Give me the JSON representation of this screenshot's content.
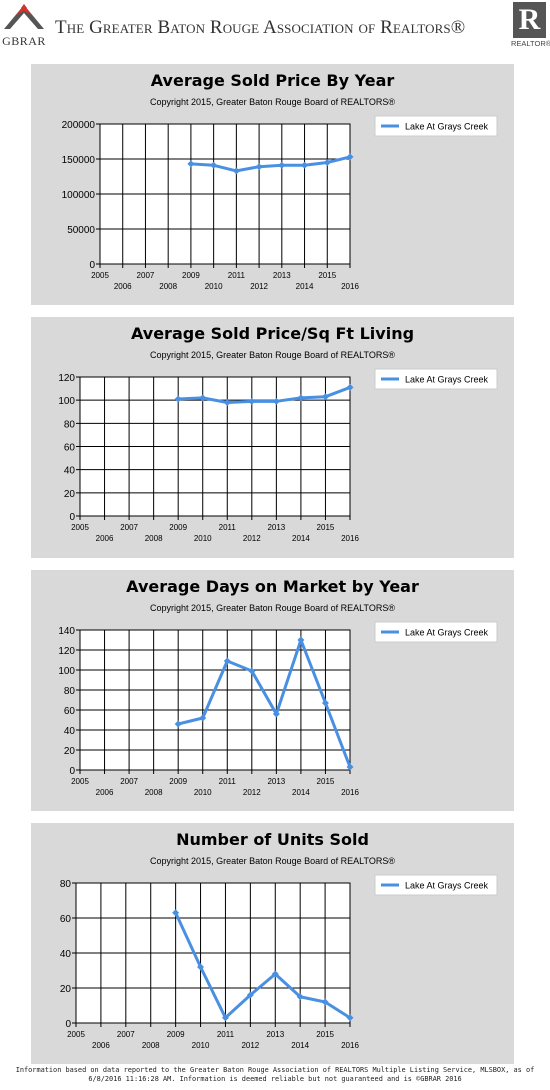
{
  "header": {
    "title": "The Greater Baton Rouge Association of Realtors®",
    "gbrar_logo_text": "GBRAR",
    "realtor_logo_letter": "R",
    "realtor_logo_text": "REALTOR®"
  },
  "chart_data": [
    {
      "type": "line",
      "title": "Average Sold Price By Year",
      "subtitle": "Copyright 2015, Greater Baton Rouge Board of REALTORS®",
      "x_ticks": [
        "2005",
        "2006",
        "2007",
        "2008",
        "2009",
        "2010",
        "2011",
        "2012",
        "2013",
        "2014",
        "2015",
        "2016"
      ],
      "y_ticks": [
        0,
        50000,
        100000,
        150000,
        200000
      ],
      "ylim": [
        0,
        200000
      ],
      "grid": true,
      "legend_position": "top-right",
      "series": [
        {
          "name": "Lake At Grays Creek",
          "color": "#4a90e2",
          "x": [
            "2009",
            "2010",
            "2011",
            "2012",
            "2013",
            "2014",
            "2015",
            "2016"
          ],
          "values": [
            143000,
            141000,
            133000,
            139000,
            141000,
            141000,
            145000,
            153000
          ]
        }
      ]
    },
    {
      "type": "line",
      "title": "Average Sold Price/Sq Ft Living",
      "subtitle": "Copyright 2015, Greater Baton Rouge Board of REALTORS®",
      "x_ticks": [
        "2005",
        "2006",
        "2007",
        "2008",
        "2009",
        "2010",
        "2011",
        "2012",
        "2013",
        "2014",
        "2015",
        "2016"
      ],
      "y_ticks": [
        0,
        20,
        40,
        60,
        80,
        100,
        120
      ],
      "ylim": [
        0,
        120
      ],
      "grid": true,
      "legend_position": "top-right",
      "series": [
        {
          "name": "Lake At Grays Creek",
          "color": "#4a90e2",
          "x": [
            "2009",
            "2010",
            "2011",
            "2012",
            "2013",
            "2014",
            "2015",
            "2016"
          ],
          "values": [
            101,
            102,
            98,
            99,
            99,
            102,
            103,
            111
          ]
        }
      ]
    },
    {
      "type": "line",
      "title": "Average Days on Market by Year",
      "subtitle": "Copyright 2015, Greater Baton Rouge Board of REALTORS®",
      "x_ticks": [
        "2005",
        "2006",
        "2007",
        "2008",
        "2009",
        "2010",
        "2011",
        "2012",
        "2013",
        "2014",
        "2015",
        "2016"
      ],
      "y_ticks": [
        0,
        20,
        40,
        60,
        80,
        100,
        120,
        140
      ],
      "ylim": [
        0,
        140
      ],
      "grid": true,
      "legend_position": "top-right",
      "series": [
        {
          "name": "Lake At Grays Creek",
          "color": "#4a90e2",
          "x": [
            "2009",
            "2010",
            "2011",
            "2012",
            "2013",
            "2014",
            "2015",
            "2016"
          ],
          "values": [
            46,
            52,
            109,
            99,
            56,
            130,
            67,
            3
          ]
        }
      ]
    },
    {
      "type": "line",
      "title": "Number of Units Sold",
      "subtitle": "Copyright 2015, Greater Baton Rouge Board of REALTORS®",
      "x_ticks": [
        "2005",
        "2006",
        "2007",
        "2008",
        "2009",
        "2010",
        "2011",
        "2012",
        "2013",
        "2014",
        "2015",
        "2016"
      ],
      "y_ticks": [
        0,
        20,
        40,
        60,
        80
      ],
      "ylim": [
        0,
        80
      ],
      "grid": true,
      "legend_position": "top-right",
      "series": [
        {
          "name": "Lake At Grays Creek",
          "color": "#4a90e2",
          "x": [
            "2009",
            "2010",
            "2011",
            "2012",
            "2013",
            "2014",
            "2015",
            "2016"
          ],
          "values": [
            63,
            32,
            3,
            16,
            28,
            15,
            12,
            3
          ]
        }
      ]
    }
  ],
  "footer": {
    "line1": "Information based on data reported to the Greater Baton Rouge Association of REALTORS Multiple Listing Service, MLSBOX, as of",
    "line2": "6/8/2016 11:16:28 AM. Information is deemed reliable but not guaranteed and is ©GBRAR 2016"
  }
}
